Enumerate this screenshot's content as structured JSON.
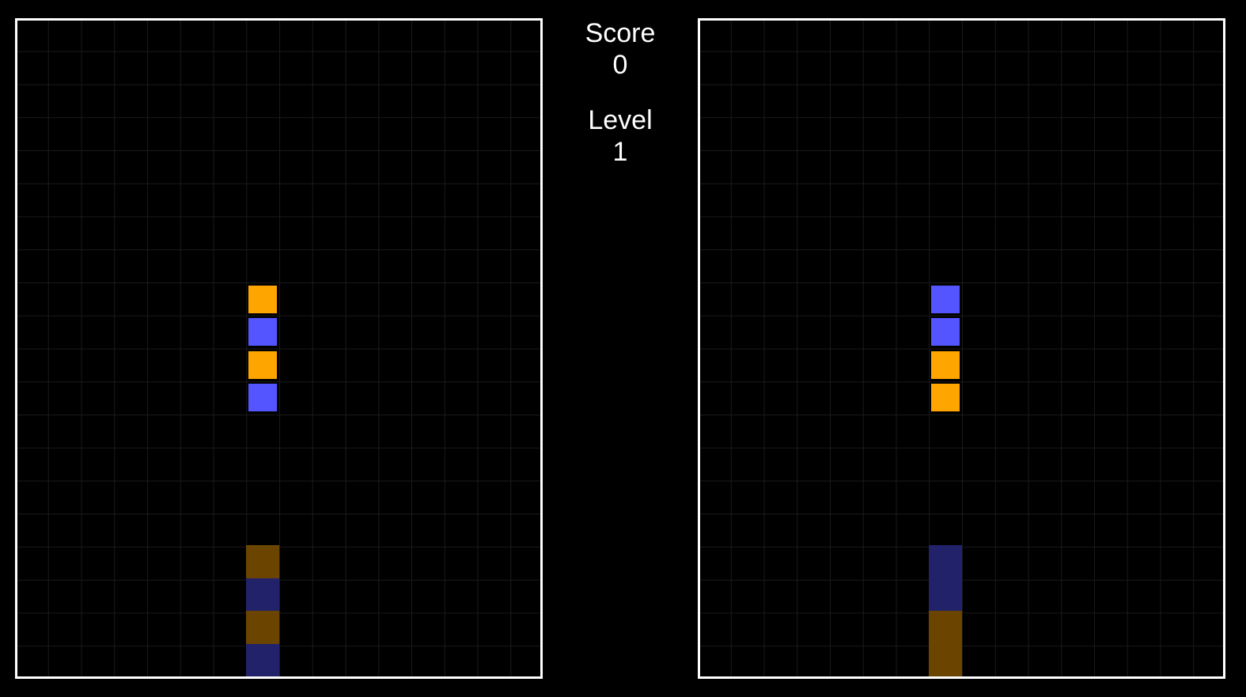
{
  "hud": {
    "score_label": "Score",
    "score_value": "0",
    "level_label": "Level",
    "level_value": "1"
  },
  "colors": {
    "background": "#000000",
    "border": "#ffffff",
    "grid": "#1a1a1a",
    "orange": "#ffa500",
    "blue": "#5555ff",
    "ghost_orange": "#6b4500",
    "ghost_blue": "#22226b"
  },
  "grid": {
    "columns": 16,
    "rows": 20
  },
  "boards": [
    {
      "name": "left",
      "piece": {
        "column": 7,
        "row": 8,
        "colors": [
          "orange",
          "blue",
          "orange",
          "blue"
        ]
      },
      "ghost": {
        "column": 7,
        "row": 16,
        "colors": [
          "ghost_orange",
          "ghost_blue",
          "ghost_orange",
          "ghost_blue"
        ]
      }
    },
    {
      "name": "right",
      "piece": {
        "column": 7,
        "row": 8,
        "colors": [
          "blue",
          "blue",
          "orange",
          "orange"
        ]
      },
      "ghost": {
        "column": 7,
        "row": 16,
        "colors": [
          "ghost_blue",
          "ghost_blue",
          "ghost_orange",
          "ghost_orange"
        ]
      }
    }
  ]
}
